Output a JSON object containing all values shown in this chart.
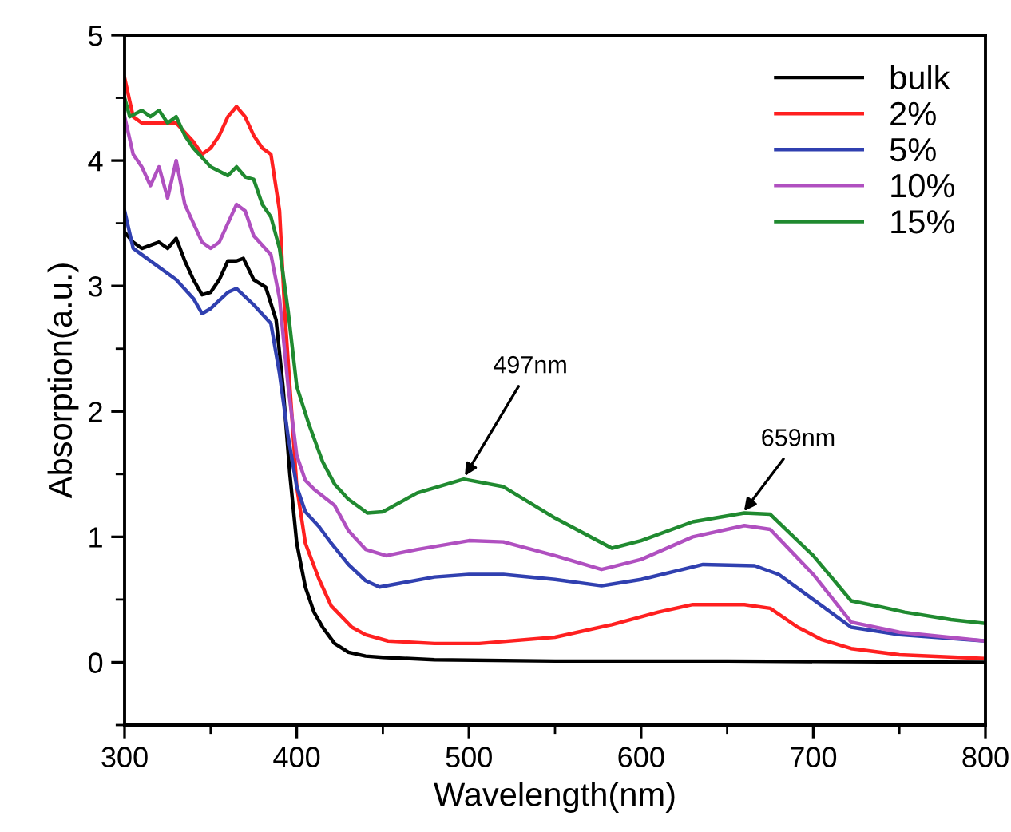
{
  "chart_data": {
    "type": "line",
    "xlabel": "Wavelength(nm)",
    "ylabel": "Absorption(a.u.)",
    "xlim": [
      300,
      800
    ],
    "xticks": [
      300,
      400,
      500,
      600,
      700,
      800
    ],
    "ylim": [
      -0.5,
      5
    ],
    "yticks": [
      0,
      1,
      2,
      3,
      4,
      5
    ],
    "grid": false,
    "legend": "top right",
    "marker": "none",
    "line_style": "solid",
    "annotations": [
      {
        "text": "497nm",
        "x": 497,
        "y": 1.47
      },
      {
        "text": "659nm",
        "x": 659,
        "y": 1.19
      }
    ],
    "series": [
      {
        "name": "bulk",
        "color": "#000000",
        "x": [
          300,
          305,
          310,
          320,
          325,
          330,
          335,
          340,
          345,
          350,
          355,
          360,
          365,
          369,
          375,
          382,
          388,
          392,
          396,
          400,
          405,
          410,
          415,
          422,
          430,
          440,
          450,
          480,
          550,
          650,
          800
        ],
        "values": [
          3.43,
          3.35,
          3.3,
          3.35,
          3.3,
          3.38,
          3.2,
          3.05,
          2.93,
          2.95,
          3.05,
          3.2,
          3.2,
          3.22,
          3.05,
          2.99,
          2.73,
          2.2,
          1.5,
          0.95,
          0.6,
          0.4,
          0.28,
          0.15,
          0.08,
          0.05,
          0.04,
          0.02,
          0.01,
          0.01,
          0.0
        ]
      },
      {
        "name": "2%",
        "color": "#ff2020",
        "x": [
          300,
          305,
          310,
          320,
          330,
          340,
          345,
          350,
          355,
          360,
          365,
          370,
          375,
          380,
          385,
          390,
          393,
          397,
          400,
          405,
          413,
          420,
          432,
          440,
          453,
          480,
          506,
          550,
          583,
          610,
          630,
          660,
          675,
          691,
          705,
          722,
          750,
          800
        ],
        "values": [
          4.66,
          4.35,
          4.3,
          4.3,
          4.3,
          4.15,
          4.05,
          4.1,
          4.2,
          4.35,
          4.43,
          4.35,
          4.2,
          4.1,
          4.05,
          3.6,
          2.8,
          2.0,
          1.4,
          0.95,
          0.66,
          0.45,
          0.28,
          0.22,
          0.17,
          0.15,
          0.15,
          0.2,
          0.3,
          0.4,
          0.46,
          0.46,
          0.43,
          0.28,
          0.18,
          0.11,
          0.06,
          0.03
        ]
      },
      {
        "name": "5%",
        "color": "#3040b0",
        "x": [
          300,
          305,
          310,
          320,
          330,
          340,
          345,
          350,
          360,
          365,
          375,
          385,
          390,
          395,
          400,
          405,
          413,
          420,
          430,
          440,
          448,
          460,
          480,
          500,
          520,
          550,
          577,
          600,
          636,
          666,
          680,
          700,
          722,
          750,
          800
        ],
        "values": [
          3.6,
          3.3,
          3.25,
          3.15,
          3.05,
          2.9,
          2.78,
          2.82,
          2.95,
          2.98,
          2.85,
          2.7,
          2.3,
          1.8,
          1.4,
          1.2,
          1.08,
          0.95,
          0.78,
          0.65,
          0.6,
          0.63,
          0.68,
          0.7,
          0.7,
          0.66,
          0.61,
          0.66,
          0.78,
          0.77,
          0.7,
          0.5,
          0.28,
          0.22,
          0.17
        ]
      },
      {
        "name": "10%",
        "color": "#b050c0",
        "x": [
          300,
          305,
          310,
          315,
          320,
          325,
          330,
          335,
          345,
          350,
          355,
          360,
          365,
          370,
          375,
          385,
          390,
          395,
          400,
          405,
          410,
          422,
          430,
          440,
          452,
          470,
          500,
          520,
          550,
          577,
          600,
          630,
          660,
          675,
          700,
          722,
          750,
          800
        ],
        "values": [
          4.35,
          4.05,
          3.95,
          3.8,
          3.95,
          3.7,
          4.0,
          3.65,
          3.35,
          3.3,
          3.35,
          3.5,
          3.65,
          3.6,
          3.4,
          3.25,
          2.9,
          2.2,
          1.65,
          1.45,
          1.38,
          1.25,
          1.05,
          0.9,
          0.85,
          0.9,
          0.97,
          0.96,
          0.85,
          0.74,
          0.82,
          1.0,
          1.09,
          1.06,
          0.7,
          0.32,
          0.24,
          0.17
        ]
      },
      {
        "name": "15%",
        "color": "#208a30",
        "x": [
          300,
          303,
          310,
          315,
          320,
          325,
          330,
          335,
          340,
          350,
          360,
          365,
          370,
          375,
          380,
          385,
          390,
          395,
          400,
          407,
          415,
          422,
          430,
          441,
          450,
          470,
          497,
          520,
          550,
          583,
          600,
          630,
          660,
          675,
          700,
          722,
          740,
          753,
          780,
          800
        ],
        "values": [
          4.5,
          4.35,
          4.4,
          4.35,
          4.4,
          4.3,
          4.35,
          4.2,
          4.1,
          3.95,
          3.88,
          3.95,
          3.87,
          3.85,
          3.65,
          3.55,
          3.3,
          2.8,
          2.2,
          1.9,
          1.6,
          1.42,
          1.3,
          1.19,
          1.2,
          1.35,
          1.46,
          1.4,
          1.15,
          0.91,
          0.97,
          1.12,
          1.19,
          1.18,
          0.85,
          0.49,
          0.44,
          0.4,
          0.34,
          0.31
        ]
      }
    ]
  }
}
